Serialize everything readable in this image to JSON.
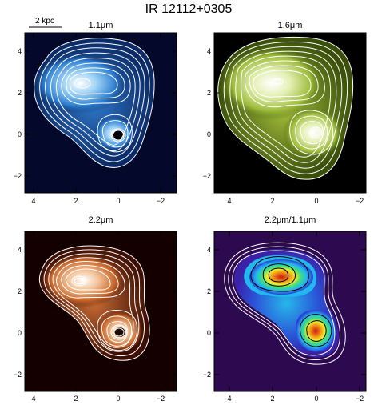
{
  "figure": {
    "title": "IR 12112+0305",
    "scale_bar_label": "2 kpc"
  },
  "panels": [
    {
      "key": "p11",
      "title": "1.1μm",
      "x_ticks": [
        "4",
        "2",
        "0",
        "−2"
      ],
      "y_ticks": [
        "4",
        "2",
        "0",
        "−2"
      ],
      "colormap": "blue",
      "background_color": "#04082a"
    },
    {
      "key": "p16",
      "title": "1.6μm",
      "x_ticks": [
        "4",
        "2",
        "0",
        "−2"
      ],
      "y_ticks": [
        "4",
        "2",
        "0",
        "−2"
      ],
      "colormap": "green",
      "background_color": "#000000"
    },
    {
      "key": "p22",
      "title": "2.2μm",
      "x_ticks": [
        "4",
        "2",
        "0",
        "−2"
      ],
      "y_ticks": [
        "4",
        "2",
        "0",
        "−2"
      ],
      "colormap": "red-brown",
      "background_color": "#150000"
    },
    {
      "key": "ratio",
      "title": "2.2μm/1.1μm",
      "x_ticks": [
        "4",
        "2",
        "0",
        "−2"
      ],
      "y_ticks": [
        "4",
        "2",
        "0",
        "−2"
      ],
      "colormap": "rainbow",
      "background_color": "#2d0950"
    }
  ]
}
